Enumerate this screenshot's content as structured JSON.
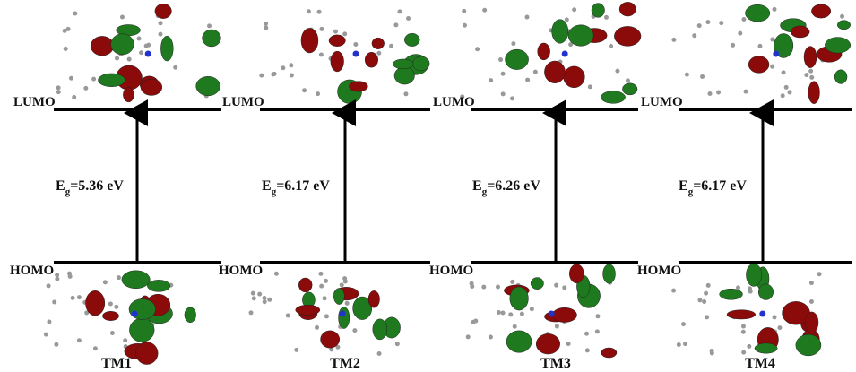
{
  "panels": [
    {
      "lumo_label": "LUMO",
      "homo_label": "HOMO",
      "gap": {
        "symbol": "E",
        "subscript": "g",
        "value": "=5.36 eV"
      },
      "name": "TM1"
    },
    {
      "lumo_label": "LUMO",
      "homo_label": "HOMO",
      "gap": {
        "symbol": "E",
        "subscript": "g",
        "value": "=6.17 eV"
      },
      "name": "TM2"
    },
    {
      "lumo_label": "LUMO",
      "homo_label": "HOMO",
      "gap": {
        "symbol": "E",
        "subscript": "g",
        "value": "=6.26 eV"
      },
      "name": "TM3"
    },
    {
      "lumo_label": "LUMO",
      "homo_label": "HOMO",
      "gap": {
        "symbol": "E",
        "subscript": "g",
        "value": "=6.17 eV"
      },
      "name": "TM4"
    }
  ]
}
